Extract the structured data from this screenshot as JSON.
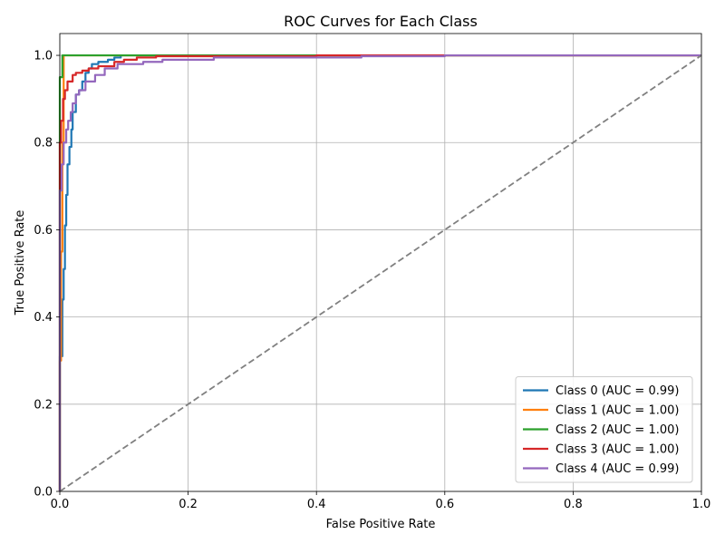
{
  "chart_data": {
    "type": "line",
    "title": "ROC Curves for Each Class",
    "xlabel": "False Positive Rate",
    "ylabel": "True Positive Rate",
    "xlim": [
      0,
      1
    ],
    "ylim": [
      0,
      1.05
    ],
    "xticks": [
      "0.0",
      "0.2",
      "0.4",
      "0.6",
      "0.8",
      "1.0"
    ],
    "xtick_values": [
      0,
      0.2,
      0.4,
      0.6,
      0.8,
      1.0
    ],
    "yticks": [
      "0.0",
      "0.2",
      "0.4",
      "0.6",
      "0.8",
      "1.0"
    ],
    "ytick_values": [
      0,
      0.2,
      0.4,
      0.6,
      0.8,
      1.0
    ],
    "grid": true,
    "legend_position": "lower-right",
    "series": [
      {
        "name": "Class 0 (AUC = 0.99)",
        "color": "#1f77b4",
        "x": [
          0,
          0,
          0.004,
          0.004,
          0.006,
          0.006,
          0.008,
          0.008,
          0.01,
          0.01,
          0.012,
          0.012,
          0.015,
          0.015,
          0.018,
          0.018,
          0.02,
          0.02,
          0.025,
          0.025,
          0.03,
          0.03,
          0.035,
          0.035,
          0.04,
          0.04,
          0.045,
          0.045,
          0.05,
          0.05,
          0.06,
          0.06,
          0.075,
          0.075,
          0.085,
          0.085,
          0.095,
          0.095,
          1.0
        ],
        "y": [
          0,
          0.31,
          0.31,
          0.44,
          0.44,
          0.51,
          0.51,
          0.61,
          0.61,
          0.68,
          0.68,
          0.75,
          0.75,
          0.79,
          0.79,
          0.83,
          0.83,
          0.87,
          0.87,
          0.91,
          0.91,
          0.92,
          0.92,
          0.94,
          0.94,
          0.96,
          0.96,
          0.97,
          0.97,
          0.98,
          0.98,
          0.985,
          0.985,
          0.99,
          0.99,
          0.995,
          0.995,
          1.0,
          1.0
        ]
      },
      {
        "name": "Class 1 (AUC = 1.00)",
        "color": "#ff7f0e",
        "x": [
          0,
          0,
          0.002,
          0.002,
          0.004,
          0.004,
          0.006,
          0.006,
          1.0
        ],
        "y": [
          0,
          0.3,
          0.3,
          0.55,
          0.55,
          0.8,
          0.8,
          1.0,
          1.0
        ]
      },
      {
        "name": "Class 2 (AUC = 1.00)",
        "color": "#2ca02c",
        "x": [
          0,
          0,
          0.004,
          0.004,
          1.0
        ],
        "y": [
          0,
          0.95,
          0.95,
          1.0,
          1.0
        ]
      },
      {
        "name": "Class 3 (AUC = 1.00)",
        "color": "#d62728",
        "x": [
          0,
          0,
          0.002,
          0.002,
          0.005,
          0.005,
          0.008,
          0.008,
          0.012,
          0.012,
          0.02,
          0.02,
          0.025,
          0.025,
          0.035,
          0.035,
          0.045,
          0.045,
          0.06,
          0.06,
          0.085,
          0.085,
          0.1,
          0.1,
          0.12,
          0.12,
          0.15,
          0.15,
          0.4,
          0.4,
          1.0
        ],
        "y": [
          0,
          0.8,
          0.8,
          0.85,
          0.85,
          0.9,
          0.9,
          0.92,
          0.92,
          0.94,
          0.94,
          0.955,
          0.955,
          0.96,
          0.96,
          0.965,
          0.965,
          0.97,
          0.97,
          0.975,
          0.975,
          0.985,
          0.985,
          0.99,
          0.99,
          0.995,
          0.995,
          0.998,
          0.998,
          1.0,
          1.0
        ]
      },
      {
        "name": "Class 4 (AUC = 0.99)",
        "color": "#9467bd",
        "x": [
          0,
          0,
          0.003,
          0.003,
          0.006,
          0.006,
          0.01,
          0.01,
          0.013,
          0.013,
          0.017,
          0.017,
          0.02,
          0.02,
          0.025,
          0.025,
          0.03,
          0.03,
          0.04,
          0.04,
          0.055,
          0.055,
          0.07,
          0.07,
          0.09,
          0.09,
          0.13,
          0.13,
          0.16,
          0.16,
          0.24,
          0.24,
          0.47,
          0.47,
          0.6,
          0.6,
          1.0
        ],
        "y": [
          0,
          0.69,
          0.69,
          0.75,
          0.75,
          0.8,
          0.8,
          0.83,
          0.83,
          0.85,
          0.85,
          0.87,
          0.87,
          0.89,
          0.89,
          0.91,
          0.91,
          0.92,
          0.92,
          0.94,
          0.94,
          0.955,
          0.955,
          0.97,
          0.97,
          0.98,
          0.98,
          0.985,
          0.985,
          0.99,
          0.99,
          0.995,
          0.995,
          0.998,
          0.998,
          1.0,
          1.0
        ]
      }
    ],
    "reference_line": {
      "x": [
        0,
        1
      ],
      "y": [
        0,
        1
      ],
      "color": "#808080",
      "style": "dashed"
    }
  }
}
